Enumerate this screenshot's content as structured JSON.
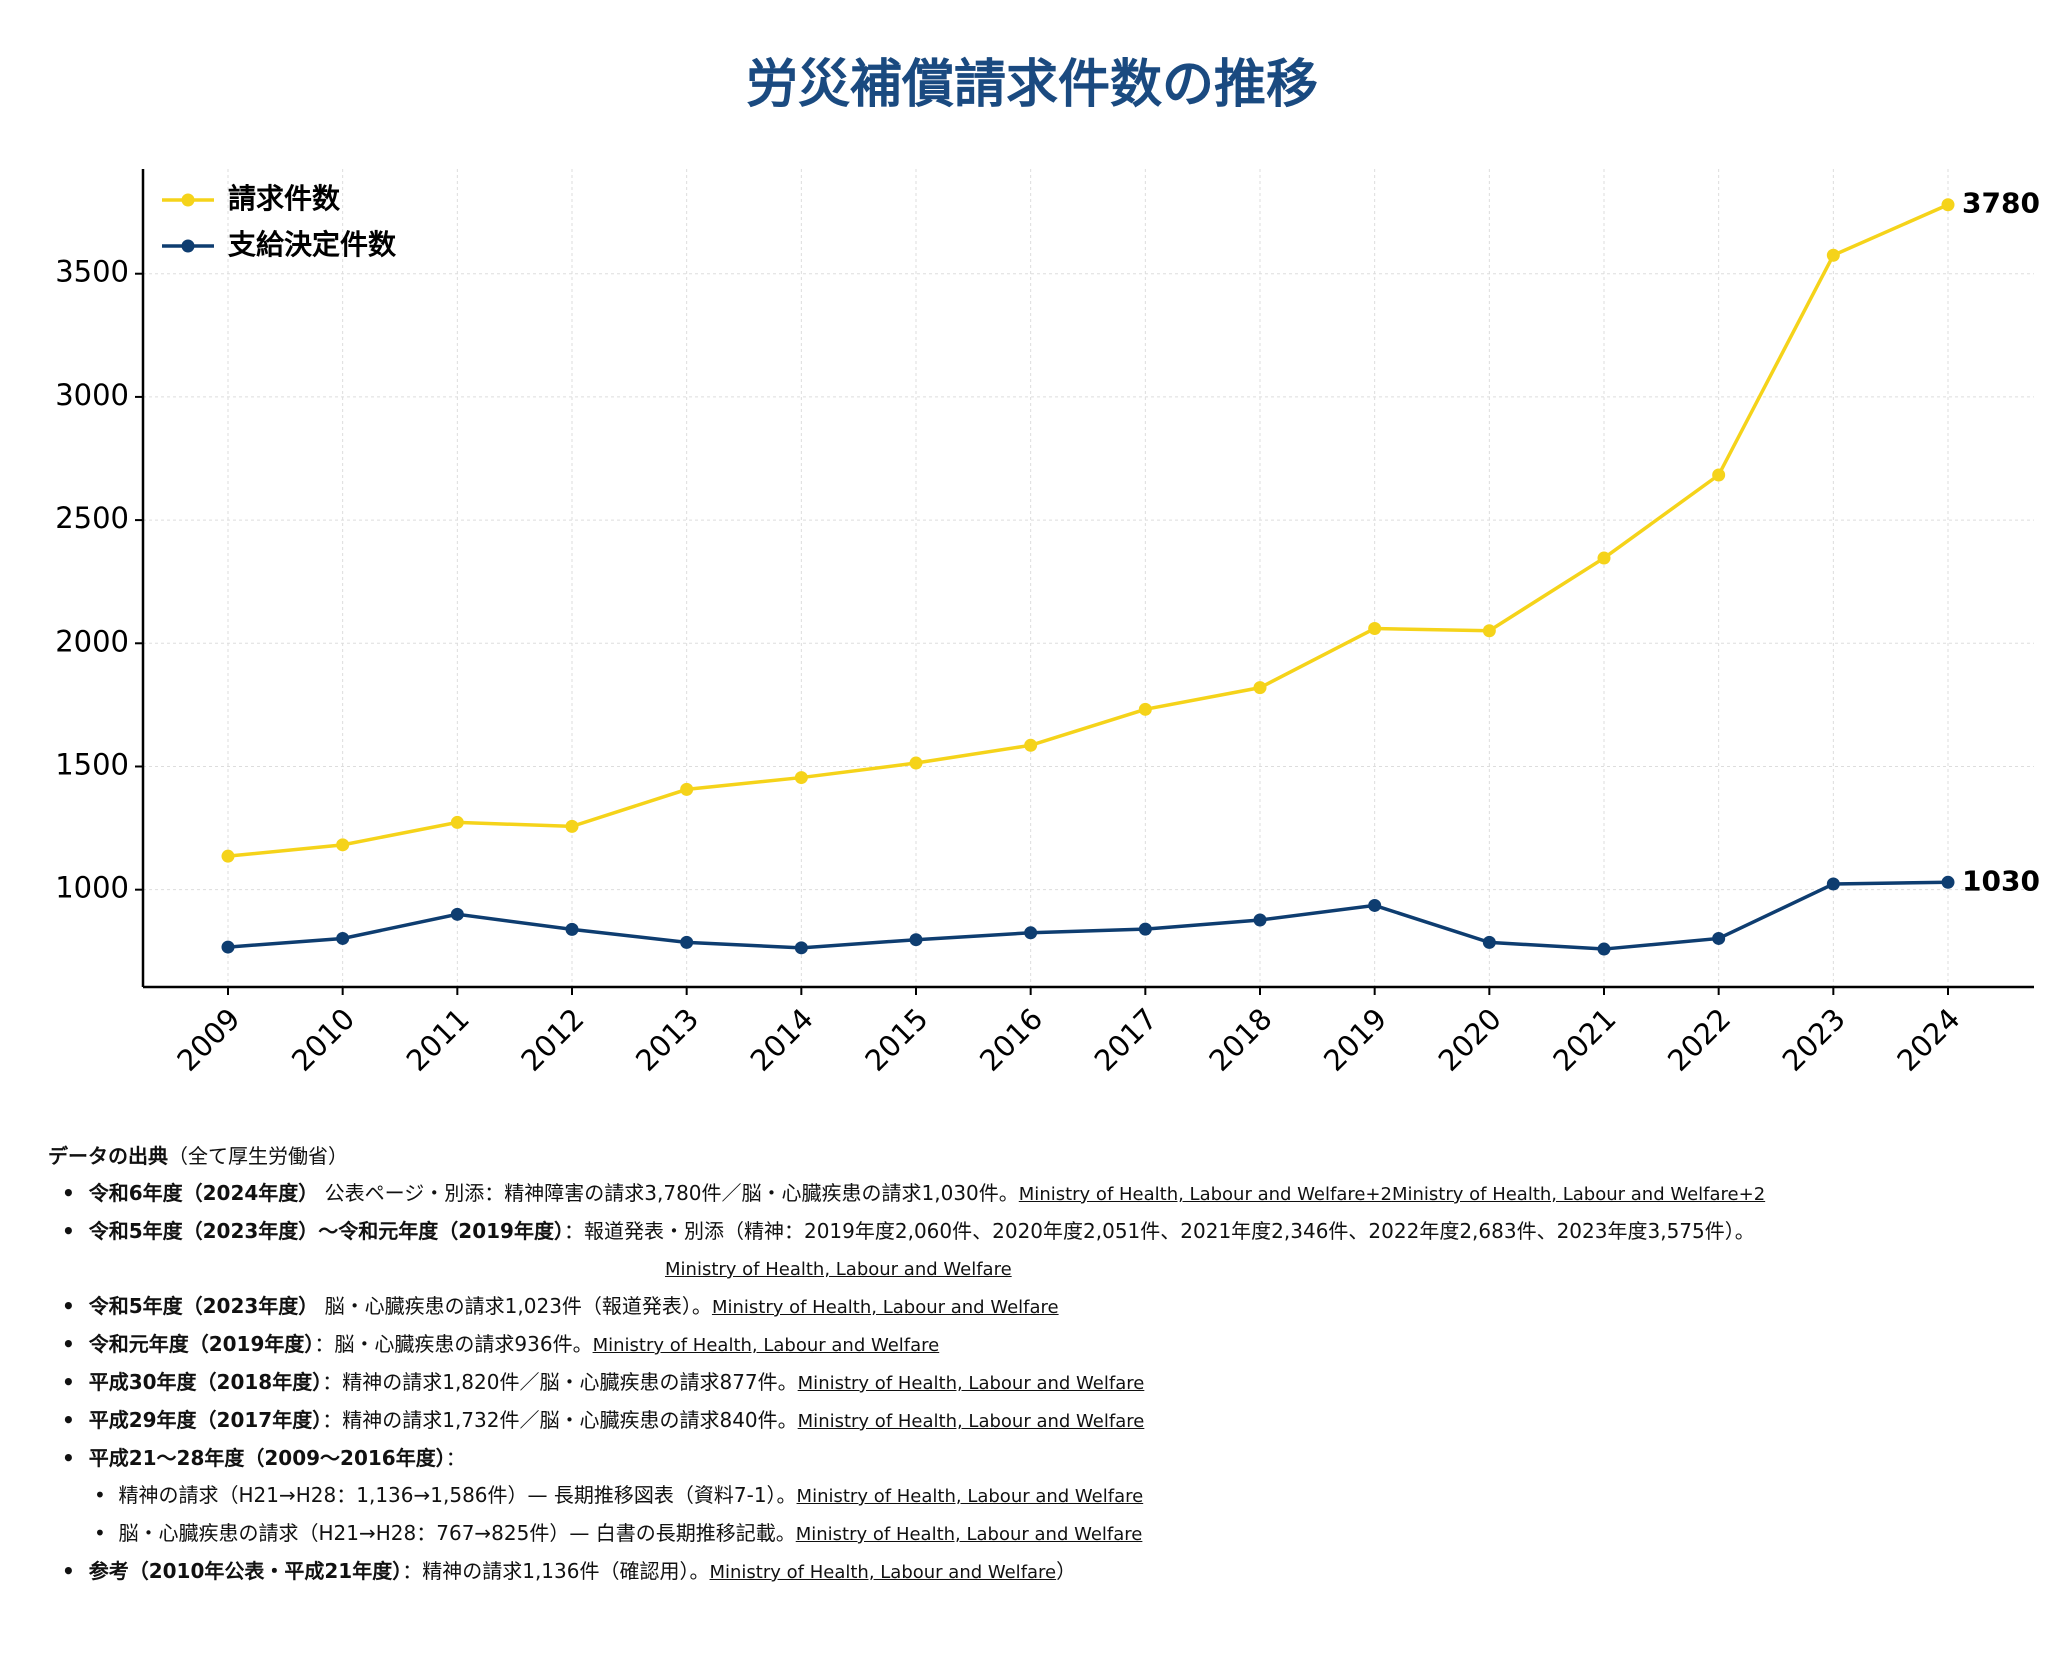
{
  "chart_data": {
    "type": "line",
    "title": "労災補償請求件数の推移",
    "categories": [
      "2009",
      "2010",
      "2011",
      "2012",
      "2013",
      "2014",
      "2015",
      "2016",
      "2017",
      "2018",
      "2019",
      "2020",
      "2021",
      "2022",
      "2023",
      "2024"
    ],
    "series": [
      {
        "name": "請求件数",
        "color": "#f5d31a",
        "values": [
          1136,
          1182,
          1273,
          1257,
          1407,
          1455,
          1514,
          1586,
          1732,
          1820,
          2060,
          2051,
          2346,
          2683,
          3575,
          3780
        ]
      },
      {
        "name": "支給決定件数",
        "color": "#0e3d70",
        "values": [
          767,
          802,
          900,
          839,
          786,
          764,
          797,
          825,
          840,
          877,
          936,
          786,
          759,
          802,
          1023,
          1030
        ]
      }
    ],
    "ylim": [
      605,
      3925
    ],
    "yticks": [
      1000,
      1500,
      2000,
      2500,
      3000,
      3500
    ],
    "grid": true,
    "legend": "upper left"
  },
  "notes": {
    "title": "データの出典",
    "subtitle": "（全て厚生労働省）",
    "items": [
      {
        "label": "令和6年度（2024年度）",
        "text": " 公表ページ・別添：精神障害の請求3,780件／脳・心臓疾患の請求1,030件。",
        "links": [
          "Ministry of Health, Labour and Welfare+2",
          "Ministry of Health, Labour and Welfare+2"
        ]
      },
      {
        "label": "令和5年度（2023年度）～令和元年度（2019年度）",
        "text": "：報道発表・別添（精神：2019年度2,060件、2020年度2,051件、2021年度2,346件、2022年度2,683件、2023年度3,575件）。",
        "links": [
          "Ministry of Health, Labour and Welfare"
        ],
        "link_break": true
      },
      {
        "label": "令和5年度（2023年度）",
        "text": " 脳・心臓疾患の請求1,023件（報道発表）。",
        "links": [
          "Ministry of Health, Labour and Welfare"
        ]
      },
      {
        "label": "令和元年度（2019年度）",
        "text": "：脳・心臓疾患の請求936件。",
        "links": [
          "Ministry of Health, Labour and Welfare"
        ]
      },
      {
        "label": "平成30年度（2018年度）",
        "text": "：精神の請求1,820件／脳・心臓疾患の請求877件。",
        "links": [
          "Ministry of Health, Labour and Welfare"
        ]
      },
      {
        "label": "平成29年度（2017年度）",
        "text": "：精神の請求1,732件／脳・心臓疾患の請求840件。",
        "links": [
          "Ministry of Health, Labour and Welfare"
        ]
      },
      {
        "label": "平成21～28年度（2009～2016年度）",
        "text": "：",
        "links": [],
        "children": [
          {
            "text": "精神の請求（H21→H28：1,136→1,586件）— 長期推移図表（資料7-1）。",
            "links": [
              "Ministry of Health, Labour and Welfare"
            ]
          },
          {
            "text": "脳・心臓疾患の請求（H21→H28：767→825件）— 白書の長期推移記載。",
            "links": [
              "Ministry of Health, Labour and Welfare"
            ]
          }
        ]
      },
      {
        "label": "参考（2010年公表・平成21年度）",
        "text": "：精神の請求1,136件（確認用）。",
        "links": [
          "Ministry of Health, Labour and Welfare"
        ],
        "suffix": "）"
      }
    ]
  }
}
